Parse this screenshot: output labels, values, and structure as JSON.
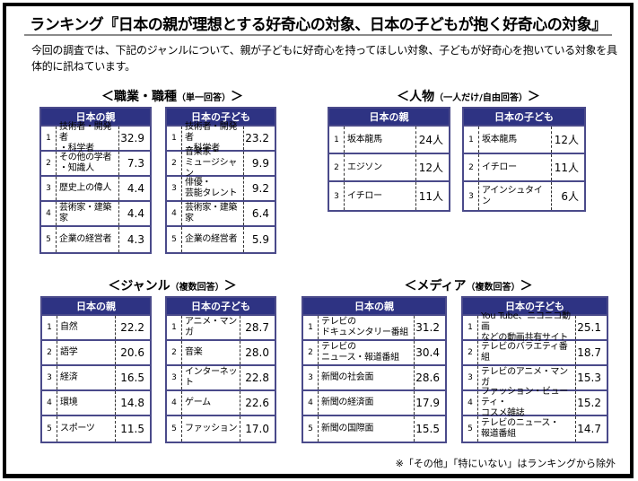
{
  "title": "ランキング『日本の親が理想とする好奇心の対象、日本の子どもが抱く好奇心の対象』",
  "intro": "今回の調査では、下記のジャンルについて、親が子どもに好奇心を持ってほしい対象、子どもが好奇心を抱いている対象を具体的に訊ねています。",
  "colors": {
    "header_bg": "#2e3383",
    "border": "#4a4a8a",
    "frame": "#000000"
  },
  "sections": {
    "occupation": {
      "title": "＜職業・職種",
      "sub": "（単一回答）",
      "close": "＞",
      "parent": {
        "header": "日本の親",
        "rows": [
          {
            "rank": "1",
            "name": "技術者・開発者\n・科学者",
            "value": "32.9"
          },
          {
            "rank": "2",
            "name": "その他の学者\n・知識人",
            "value": "7.3"
          },
          {
            "rank": "3",
            "name": "歴史上の偉人",
            "value": "4.4"
          },
          {
            "rank": "4",
            "name": "芸術家・建築家",
            "value": "4.4"
          },
          {
            "rank": "5",
            "name": "企業の経営者",
            "value": "4.3"
          }
        ]
      },
      "child": {
        "header": "日本の子ども",
        "rows": [
          {
            "rank": "1",
            "name": "技術者・開発者\n・科学者",
            "value": "23.2"
          },
          {
            "rank": "2",
            "name": "音楽家・\nミュージシャン",
            "value": "9.9"
          },
          {
            "rank": "3",
            "name": "俳優・\n芸能タレント",
            "value": "9.2"
          },
          {
            "rank": "4",
            "name": "芸術家・建築家",
            "value": "6.4"
          },
          {
            "rank": "5",
            "name": "企業の経営者",
            "value": "5.9"
          }
        ]
      }
    },
    "person": {
      "title": "＜人物",
      "sub": "（一人だけ/自由回答）",
      "close": "＞",
      "parent": {
        "header": "日本の親",
        "rows": [
          {
            "rank": "1",
            "name": "坂本龍馬",
            "value": "24人"
          },
          {
            "rank": "2",
            "name": "エジソン",
            "value": "12人"
          },
          {
            "rank": "3",
            "name": "イチロー",
            "value": "11人"
          }
        ]
      },
      "child": {
        "header": "日本の子ども",
        "rows": [
          {
            "rank": "1",
            "name": "坂本龍馬",
            "value": "12人"
          },
          {
            "rank": "2",
            "name": "イチロー",
            "value": "11人"
          },
          {
            "rank": "3",
            "name": "アインシュタイン",
            "value": "6人"
          }
        ]
      }
    },
    "genre": {
      "title": "＜ジャンル",
      "sub": "（複数回答）",
      "close": "＞",
      "parent": {
        "header": "日本の親",
        "rows": [
          {
            "rank": "1",
            "name": "自然",
            "value": "22.2"
          },
          {
            "rank": "2",
            "name": "語学",
            "value": "20.6"
          },
          {
            "rank": "3",
            "name": "経済",
            "value": "16.5"
          },
          {
            "rank": "4",
            "name": "環境",
            "value": "14.8"
          },
          {
            "rank": "5",
            "name": "スポーツ",
            "value": "11.5"
          }
        ]
      },
      "child": {
        "header": "日本の子ども",
        "rows": [
          {
            "rank": "1",
            "name": "アニメ・マンガ",
            "value": "28.7"
          },
          {
            "rank": "2",
            "name": "音楽",
            "value": "28.0"
          },
          {
            "rank": "3",
            "name": "インターネット",
            "value": "22.8"
          },
          {
            "rank": "4",
            "name": "ゲーム",
            "value": "22.6"
          },
          {
            "rank": "5",
            "name": "ファッション",
            "value": "17.0"
          }
        ]
      }
    },
    "media": {
      "title": "＜メディア",
      "sub": "（複数回答）",
      "close": "＞",
      "parent": {
        "header": "日本の親",
        "rows": [
          {
            "rank": "1",
            "name": "テレビの\nドキュメンタリー番組",
            "value": "31.2"
          },
          {
            "rank": "2",
            "name": "テレビの\nニュース・報道番組",
            "value": "30.4"
          },
          {
            "rank": "3",
            "name": "新聞の社会面",
            "value": "28.6"
          },
          {
            "rank": "4",
            "name": "新聞の経済面",
            "value": "17.9"
          },
          {
            "rank": "5",
            "name": "新聞の国際面",
            "value": "15.5"
          }
        ]
      },
      "child": {
        "header": "日本の子ども",
        "rows": [
          {
            "rank": "1",
            "name": "You Tube、ニコニコ動画\nなどの動画共有サイト",
            "value": "25.1"
          },
          {
            "rank": "2",
            "name": "テレビのバラエティ番組",
            "value": "18.7"
          },
          {
            "rank": "3",
            "name": "テレビのアニメ・マンガ",
            "value": "15.3"
          },
          {
            "rank": "4",
            "name": "ファッション・ビューティ・\nコスメ雑誌",
            "value": "15.2"
          },
          {
            "rank": "5",
            "name": "テレビのニュース・\n報道番組",
            "value": "14.7"
          }
        ]
      }
    }
  },
  "note": "※「その他」「特にいない」はランキングから除外"
}
